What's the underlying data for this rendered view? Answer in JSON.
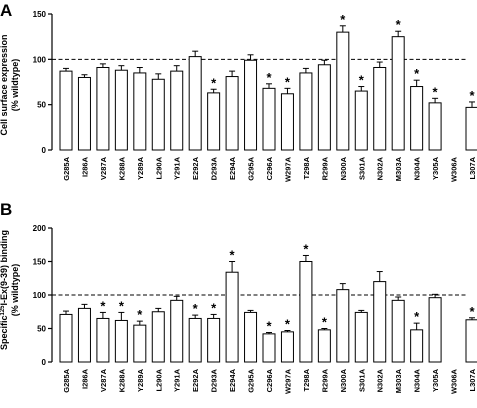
{
  "chart_data": [
    {
      "panel": "A",
      "type": "bar",
      "ylabel_line1": "Cell surface expression",
      "ylabel_line2": "(% wildtype)",
      "ylim": [
        0,
        150
      ],
      "yticks": [
        0,
        50,
        100,
        150
      ],
      "reference_line": 100,
      "categories": [
        "G285A",
        "I286A",
        "V287A",
        "K288A",
        "Y289A",
        "L290A",
        "Y291A",
        "E292A",
        "D293A",
        "E294A",
        "G295A",
        "C296A",
        "W297A",
        "T298A",
        "R299A",
        "N300A",
        "S301A",
        "N302A",
        "M303A",
        "N304A",
        "Y305A",
        "W306A",
        "L307A"
      ],
      "values": [
        87,
        80,
        91,
        88,
        85,
        78,
        87,
        103,
        63,
        81,
        99,
        68,
        62,
        85,
        94,
        130,
        65,
        91,
        125,
        70,
        52,
        null,
        47
      ],
      "errors": [
        3,
        3,
        4,
        5,
        6,
        6,
        6,
        6,
        4,
        6,
        6,
        5,
        6,
        5,
        5,
        7,
        5,
        6,
        6,
        7,
        5,
        null,
        6
      ],
      "significant": [
        false,
        false,
        false,
        false,
        false,
        false,
        false,
        false,
        true,
        false,
        false,
        true,
        true,
        false,
        false,
        true,
        true,
        false,
        true,
        true,
        true,
        false,
        true
      ]
    },
    {
      "panel": "B",
      "type": "bar",
      "ylabel_line1": "Specific",
      "ylabel_sup": "125",
      "ylabel_line1b": "I-Ex(9-39) binding",
      "ylabel_line2": "(% wildtype)",
      "ylim": [
        0,
        200
      ],
      "yticks": [
        0,
        50,
        100,
        150,
        200
      ],
      "reference_line": 100,
      "categories": [
        "G285A",
        "I286A",
        "V287A",
        "K288A",
        "Y289A",
        "L290A",
        "Y291A",
        "E292A",
        "D293A",
        "E294A",
        "G295A",
        "C296A",
        "W297A",
        "T298A",
        "R299A",
        "N300A",
        "S301A",
        "N302A",
        "M303A",
        "N304A",
        "Y305A",
        "W306A",
        "L307A"
      ],
      "values": [
        71,
        80,
        65,
        62,
        55,
        75,
        92,
        65,
        65,
        134,
        74,
        42,
        45,
        150,
        48,
        108,
        74,
        120,
        92,
        48,
        96,
        null,
        63
      ],
      "errors": [
        5,
        6,
        9,
        12,
        6,
        5,
        6,
        5,
        6,
        16,
        3,
        2,
        2,
        9,
        2,
        9,
        3,
        15,
        5,
        10,
        5,
        null,
        3
      ],
      "significant": [
        false,
        false,
        true,
        true,
        true,
        false,
        false,
        true,
        true,
        true,
        false,
        true,
        true,
        true,
        true,
        false,
        false,
        false,
        false,
        true,
        false,
        false,
        true
      ]
    }
  ]
}
